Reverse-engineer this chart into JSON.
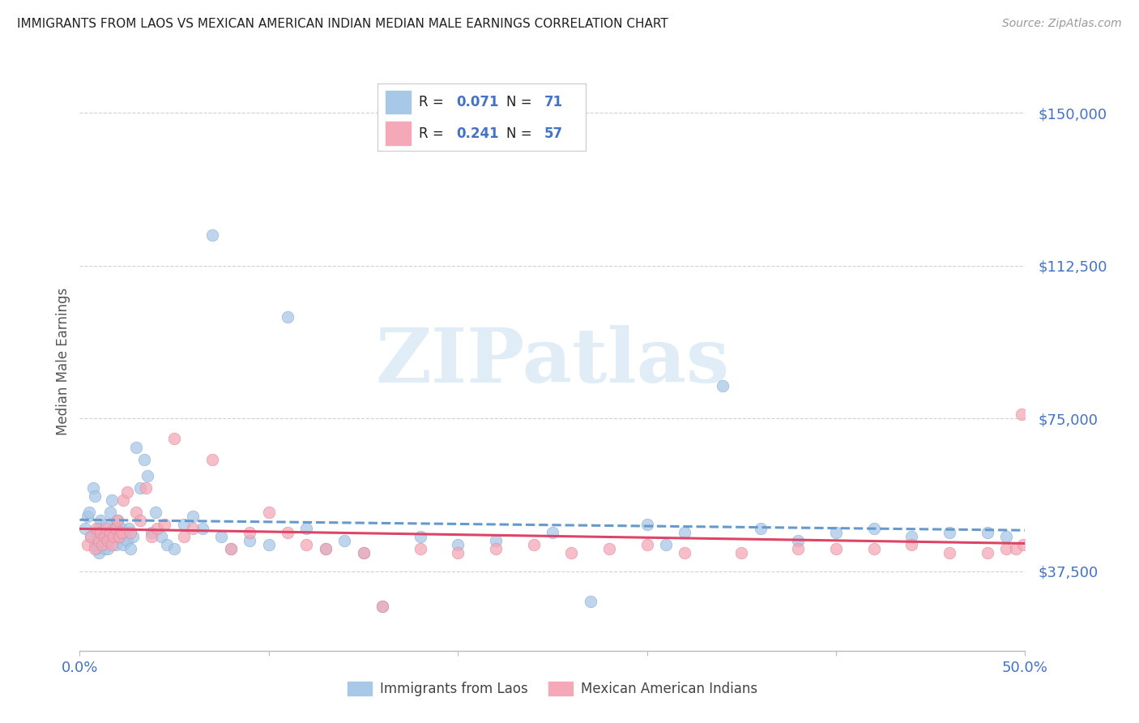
{
  "title": "IMMIGRANTS FROM LAOS VS MEXICAN AMERICAN INDIAN MEDIAN MALE EARNINGS CORRELATION CHART",
  "source": "Source: ZipAtlas.com",
  "ylabel": "Median Male Earnings",
  "xlim": [
    0.0,
    0.5
  ],
  "ylim": [
    18000,
    160000
  ],
  "ytick_vals": [
    37500,
    75000,
    112500,
    150000
  ],
  "ytick_labels": [
    "$37,500",
    "$75,000",
    "$112,500",
    "$150,000"
  ],
  "xtick_vals": [
    0.0,
    0.1,
    0.2,
    0.3,
    0.4,
    0.5
  ],
  "xtick_labels": [
    "0.0%",
    "",
    "",
    "",
    "",
    "50.0%"
  ],
  "blue_R": "0.071",
  "blue_N": "71",
  "pink_R": "0.241",
  "pink_N": "57",
  "blue_color": "#a8c8e8",
  "pink_color": "#f4a8b8",
  "trend_blue_color": "#6699cc",
  "trend_pink_color": "#dd4466",
  "axis_color": "#4472c4",
  "legend_text_color": "#222222",
  "watermark_color": "#c8dff0",
  "watermark_text": "ZIPatlas",
  "bottom_legend_label1": "Immigrants from Laos",
  "bottom_legend_label2": "Mexican American Indians",
  "blue_x": [
    0.003,
    0.004,
    0.005,
    0.006,
    0.007,
    0.008,
    0.008,
    0.009,
    0.009,
    0.01,
    0.01,
    0.011,
    0.012,
    0.013,
    0.013,
    0.014,
    0.015,
    0.015,
    0.016,
    0.017,
    0.018,
    0.019,
    0.02,
    0.021,
    0.022,
    0.023,
    0.024,
    0.025,
    0.026,
    0.027,
    0.028,
    0.03,
    0.032,
    0.034,
    0.036,
    0.038,
    0.04,
    0.043,
    0.046,
    0.05,
    0.055,
    0.06,
    0.065,
    0.07,
    0.075,
    0.08,
    0.09,
    0.1,
    0.11,
    0.12,
    0.13,
    0.14,
    0.15,
    0.16,
    0.18,
    0.2,
    0.22,
    0.25,
    0.27,
    0.3,
    0.31,
    0.32,
    0.34,
    0.36,
    0.38,
    0.4,
    0.42,
    0.44,
    0.46,
    0.48,
    0.49
  ],
  "blue_y": [
    48000,
    51000,
    52000,
    46000,
    58000,
    44000,
    56000,
    47000,
    43000,
    48000,
    42000,
    50000,
    44000,
    47000,
    43000,
    49000,
    46000,
    43000,
    52000,
    55000,
    48000,
    44000,
    50000,
    46000,
    48000,
    44000,
    47000,
    45000,
    48000,
    43000,
    46000,
    68000,
    58000,
    65000,
    61000,
    47000,
    52000,
    46000,
    44000,
    43000,
    49000,
    51000,
    48000,
    120000,
    46000,
    43000,
    45000,
    44000,
    100000,
    48000,
    43000,
    45000,
    42000,
    29000,
    46000,
    44000,
    45000,
    47000,
    30000,
    49000,
    44000,
    47000,
    83000,
    48000,
    45000,
    47000,
    48000,
    46000,
    47000,
    47000,
    46000
  ],
  "pink_x": [
    0.004,
    0.006,
    0.008,
    0.009,
    0.01,
    0.011,
    0.012,
    0.013,
    0.014,
    0.015,
    0.016,
    0.017,
    0.018,
    0.019,
    0.02,
    0.021,
    0.022,
    0.023,
    0.025,
    0.027,
    0.03,
    0.032,
    0.035,
    0.038,
    0.041,
    0.045,
    0.05,
    0.055,
    0.06,
    0.07,
    0.08,
    0.09,
    0.1,
    0.11,
    0.12,
    0.13,
    0.15,
    0.16,
    0.18,
    0.2,
    0.22,
    0.24,
    0.26,
    0.28,
    0.3,
    0.32,
    0.35,
    0.38,
    0.4,
    0.42,
    0.44,
    0.46,
    0.48,
    0.49,
    0.495,
    0.498,
    0.499
  ],
  "pink_y": [
    44000,
    46000,
    43000,
    48000,
    45000,
    47000,
    44000,
    46000,
    48000,
    45000,
    47000,
    44000,
    46000,
    48000,
    50000,
    46000,
    47000,
    55000,
    57000,
    47000,
    52000,
    50000,
    58000,
    46000,
    48000,
    49000,
    70000,
    46000,
    48000,
    65000,
    43000,
    47000,
    52000,
    47000,
    44000,
    43000,
    42000,
    29000,
    43000,
    42000,
    43000,
    44000,
    42000,
    43000,
    44000,
    42000,
    42000,
    43000,
    43000,
    43000,
    44000,
    42000,
    42000,
    43000,
    43000,
    76000,
    44000
  ]
}
